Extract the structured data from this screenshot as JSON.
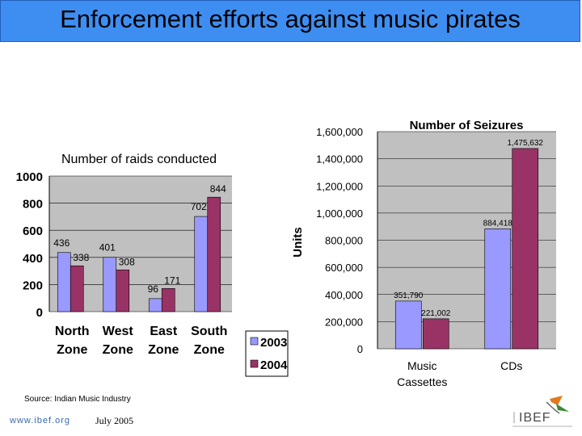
{
  "page": {
    "title": "Enforcement efforts against music pirates",
    "source": "Source: Indian Music Industry",
    "url": "www.ibef.org",
    "date": "July 2005",
    "logo_text": "IBEF",
    "colors": {
      "title_bg": "#3e8ef2",
      "series_2003": "#9999ff",
      "series_2004": "#993366",
      "plot_bg": "#c0c0c0"
    }
  },
  "chart_data": [
    {
      "type": "bar",
      "title": "Number of raids conducted",
      "categories": [
        "North Zone",
        "West Zone",
        "East Zone",
        "South Zone"
      ],
      "series": [
        {
          "name": "2003",
          "values": [
            436,
            401,
            96,
            702
          ]
        },
        {
          "name": "2004",
          "values": [
            338,
            308,
            171,
            844
          ]
        }
      ],
      "yticks": [
        "0",
        "200",
        "400",
        "600",
        "800",
        "1000"
      ],
      "ylim": [
        0,
        1000
      ],
      "grid": true,
      "legend": "bottom-right"
    },
    {
      "type": "bar",
      "title": "Number of Seizures",
      "categories": [
        "Music Cassettes",
        "CDs"
      ],
      "ylabel": "Units",
      "series": [
        {
          "name": "2003",
          "values": [
            351790,
            884418
          ],
          "labels": [
            "351,790",
            "884,418"
          ]
        },
        {
          "name": "2004",
          "values": [
            221002,
            1475632
          ],
          "labels": [
            "221,002",
            "1,475,632"
          ]
        }
      ],
      "yticks": [
        "0",
        "200,000",
        "400,000",
        "600,000",
        "800,000",
        "1,000,000",
        "1,200,000",
        "1,400,000",
        "1,600,000"
      ],
      "ylim": [
        0,
        1600000
      ],
      "grid": true,
      "legend": "none"
    }
  ]
}
